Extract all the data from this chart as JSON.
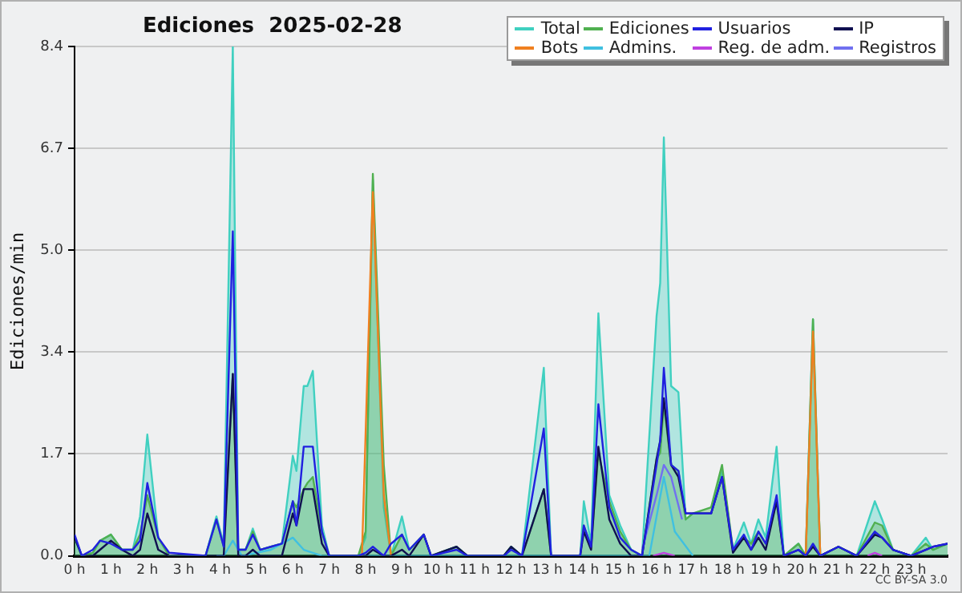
{
  "chart_data": {
    "type": "line",
    "title": "Ediciones  2025-02-28",
    "ylabel": "Ediciones/min",
    "annotations": [
      "CC BY-SA 3.0"
    ],
    "xlim": [
      0,
      24
    ],
    "xticks": [
      {
        "value": 0,
        "label": "0 h"
      },
      {
        "value": 1,
        "label": "1 h"
      },
      {
        "value": 2,
        "label": "2 h"
      },
      {
        "value": 3,
        "label": "3 h"
      },
      {
        "value": 4,
        "label": "4 h"
      },
      {
        "value": 5,
        "label": "5 h"
      },
      {
        "value": 6,
        "label": "6 h"
      },
      {
        "value": 7,
        "label": "7 h"
      },
      {
        "value": 8,
        "label": "8 h"
      },
      {
        "value": 9,
        "label": "9 h"
      },
      {
        "value": 10,
        "label": "10 h"
      },
      {
        "value": 11,
        "label": "11 h"
      },
      {
        "value": 12,
        "label": "12 h"
      },
      {
        "value": 13,
        "label": "13 h"
      },
      {
        "value": 14,
        "label": "14 h"
      },
      {
        "value": 15,
        "label": "15 h"
      },
      {
        "value": 16,
        "label": "16 h"
      },
      {
        "value": 17,
        "label": "17 h"
      },
      {
        "value": 18,
        "label": "18 h"
      },
      {
        "value": 19,
        "label": "19 h"
      },
      {
        "value": 20,
        "label": "20 h"
      },
      {
        "value": 21,
        "label": "21 h"
      },
      {
        "value": 22,
        "label": "22 h"
      },
      {
        "value": 23,
        "label": "23 h"
      }
    ],
    "ylim": [
      0,
      8.4
    ],
    "yticks": [
      {
        "value": 0,
        "label": "0.0"
      },
      {
        "value": 1.68,
        "label": "1.7"
      },
      {
        "value": 3.36,
        "label": "3.4"
      },
      {
        "value": 5.04,
        "label": "5.0"
      },
      {
        "value": 6.72,
        "label": "6.7"
      },
      8.4
    ],
    "grid": "y",
    "legend": "top right",
    "marker": "none",
    "line_style": "solid",
    "x": [
      0,
      0.2,
      0.5,
      0.7,
      1,
      1.3,
      1.6,
      1.8,
      2,
      2.3,
      2.6,
      3.6,
      3.9,
      4.1,
      4.35,
      4.5,
      4.7,
      4.9,
      5.1,
      5.4,
      5.7,
      6,
      6.1,
      6.3,
      6.4,
      6.55,
      6.8,
      7,
      7.8,
      8.0,
      8.2,
      8.5,
      8.7,
      9,
      9.2,
      9.6,
      9.8,
      10.5,
      10.8,
      11.8,
      12.0,
      12.3,
      12.9,
      13.1,
      13.9,
      14.0,
      14.2,
      14.4,
      14.7,
      15,
      15.3,
      15.6,
      16,
      16.1,
      16.2,
      16.4,
      16.6,
      16.8,
      17,
      17.5,
      17.8,
      18.1,
      18.4,
      18.6,
      18.8,
      19,
      19.3,
      19.5,
      19.9,
      20.1,
      20.3,
      20.5,
      21,
      21.5,
      22,
      22.2,
      22.5,
      23,
      23.4,
      23.6,
      24
    ],
    "series": [
      {
        "name": "Total",
        "type": "area",
        "color": "#40d0c0",
        "values": [
          0.3,
          0,
          0.05,
          0.25,
          0.35,
          0.1,
          0.1,
          0.65,
          2.0,
          0.3,
          0,
          0,
          0.65,
          0.2,
          8.4,
          0.1,
          0.1,
          0.45,
          0.1,
          0.15,
          0.2,
          1.65,
          1.4,
          2.8,
          2.8,
          3.05,
          0.5,
          0,
          0,
          0.3,
          6.2,
          0.8,
          0,
          0.65,
          0.1,
          0.35,
          0,
          0.15,
          0,
          0,
          0.15,
          0,
          3.1,
          0,
          0,
          0.9,
          0.2,
          4.0,
          1.0,
          0.5,
          0.1,
          0,
          3.95,
          4.5,
          6.9,
          2.8,
          2.7,
          0.6,
          0.7,
          0.7,
          1.4,
          0.1,
          0.55,
          0.2,
          0.6,
          0.3,
          1.8,
          0,
          0.2,
          0,
          3.9,
          0,
          0.15,
          0,
          0.9,
          0.6,
          0.1,
          0,
          0.3,
          0.1,
          0.2
        ]
      },
      {
        "name": "Ediciones",
        "type": "area",
        "color": "#50b050",
        "values": [
          0.3,
          0,
          0.05,
          0.25,
          0.35,
          0.1,
          0.1,
          0.35,
          1.0,
          0.3,
          0,
          0,
          0.6,
          0.15,
          3.0,
          0.1,
          0.1,
          0.4,
          0.1,
          0.15,
          0.2,
          0.9,
          0.8,
          1.1,
          1.2,
          1.3,
          0.4,
          0,
          0,
          0.4,
          6.3,
          1.5,
          0,
          0.35,
          0.1,
          0.35,
          0,
          0.15,
          0,
          0,
          0.15,
          0,
          1.1,
          0,
          0,
          0.5,
          0.15,
          1.7,
          0.9,
          0.4,
          0.1,
          0,
          1.6,
          1.7,
          2.5,
          1.5,
          1.4,
          0.6,
          0.7,
          0.8,
          1.5,
          0.1,
          0.3,
          0.2,
          0.4,
          0.2,
          0.9,
          0,
          0.2,
          0,
          3.9,
          0,
          0.15,
          0,
          0.55,
          0.5,
          0.1,
          0,
          0.2,
          0.1,
          0.2
        ]
      },
      {
        "name": "Usuarios",
        "type": "line",
        "color": "#2020e0",
        "values": [
          0.35,
          0,
          0.1,
          0.25,
          0.2,
          0.1,
          0.1,
          0.25,
          1.2,
          0.3,
          0.05,
          0,
          0.6,
          0.15,
          5.35,
          0.1,
          0.1,
          0.35,
          0.1,
          0.15,
          0.2,
          0.9,
          0.5,
          1.8,
          1.8,
          1.8,
          0.4,
          0,
          0,
          0.05,
          0.15,
          0,
          0.2,
          0.35,
          0.1,
          0.35,
          0,
          0.1,
          0,
          0,
          0.1,
          0,
          2.1,
          0,
          0,
          0.5,
          0.15,
          2.5,
          0.8,
          0.3,
          0.1,
          0,
          1.5,
          1.9,
          3.1,
          1.5,
          1.4,
          0.7,
          0.7,
          0.7,
          1.3,
          0.1,
          0.35,
          0.1,
          0.4,
          0.2,
          1.0,
          0,
          0.1,
          0,
          0.2,
          0,
          0.15,
          0,
          0.4,
          0.3,
          0.1,
          0,
          0.1,
          0.15,
          0.2
        ]
      },
      {
        "name": "IP",
        "type": "line",
        "color": "#101050",
        "values": [
          0.3,
          0,
          0,
          0.1,
          0.25,
          0.1,
          0,
          0.1,
          0.7,
          0.1,
          0,
          0,
          0,
          0,
          3.0,
          0,
          0,
          0.1,
          0,
          0,
          0,
          0.7,
          0.5,
          1.1,
          1.1,
          1.1,
          0.2,
          0,
          0,
          0,
          0.1,
          0,
          0,
          0.1,
          0,
          0.35,
          0,
          0.15,
          0,
          0,
          0.15,
          0,
          1.1,
          0,
          0,
          0.4,
          0.1,
          1.8,
          0.6,
          0.2,
          0,
          0,
          1.6,
          1.9,
          2.6,
          1.5,
          1.3,
          0.7,
          0.7,
          0.7,
          1.3,
          0.05,
          0.3,
          0.1,
          0.3,
          0.1,
          0.9,
          0,
          0.1,
          0,
          0.15,
          0,
          0.15,
          0,
          0.35,
          0.3,
          0.1,
          0,
          0.1,
          0.15,
          0.2
        ]
      },
      {
        "name": "Bots",
        "type": "line",
        "color": "#f08020",
        "x": [
          7.9,
          8.2,
          8.5,
          8.7,
          14,
          20.1,
          20.3,
          20.5
        ],
        "values": [
          0,
          6.0,
          1.0,
          0,
          null,
          0,
          3.7,
          0
        ]
      },
      {
        "name": "Admins.",
        "type": "line",
        "color": "#40c0e0",
        "x": [
          3.9,
          4.1,
          4.35,
          4.6,
          5.4,
          6,
          6.3,
          6.8,
          15.8,
          16.2,
          16.5,
          17
        ],
        "values": [
          0,
          0,
          0.25,
          0,
          0.1,
          0.3,
          0.1,
          0,
          0,
          1.3,
          0.4,
          0
        ]
      },
      {
        "name": "Reg. de adm.",
        "type": "line",
        "color": "#c040e0",
        "x": [
          15.9,
          16.2,
          16.5,
          19,
          21.8,
          22,
          22.2
        ],
        "values": [
          0,
          0.05,
          0,
          null,
          0,
          0.05,
          0
        ]
      },
      {
        "name": "Registros",
        "type": "line",
        "color": "#7070f0",
        "x": [
          15.6,
          16,
          16.2,
          16.4,
          16.7
        ],
        "values": [
          0.1,
          1.0,
          1.5,
          1.3,
          0.6
        ]
      }
    ]
  }
}
